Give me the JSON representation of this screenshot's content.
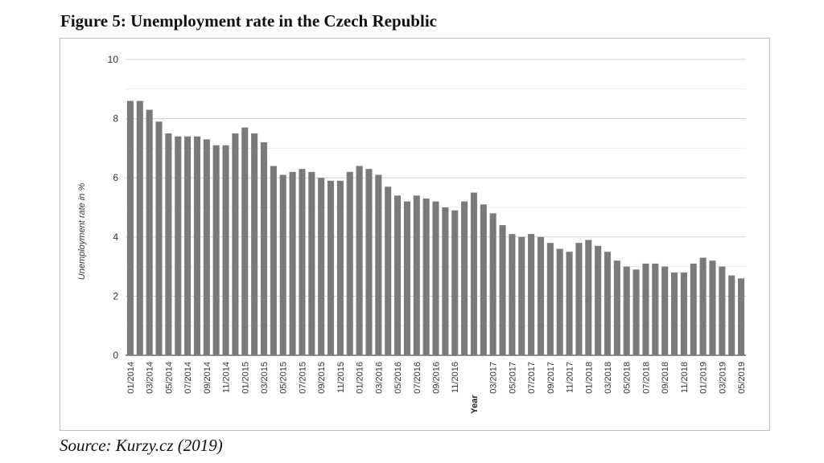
{
  "figure": {
    "title": "Figure 5: Unemployment rate in the Czech Republic",
    "source": "Source: Kurzy.cz (2019)"
  },
  "chart_data": {
    "type": "bar",
    "title": "",
    "xlabel": "Year",
    "ylabel": "Unemployment rate in %",
    "ylim": [
      0,
      10
    ],
    "y_ticks": [
      0,
      2,
      4,
      6,
      8,
      10
    ],
    "grid": true,
    "legend": "none",
    "bar_color": "#7a7a7a",
    "categories": [
      "01/2014",
      "02/2014",
      "03/2014",
      "04/2014",
      "05/2014",
      "06/2014",
      "07/2014",
      "08/2014",
      "09/2014",
      "10/2014",
      "11/2014",
      "12/2014",
      "01/2015",
      "02/2015",
      "03/2015",
      "04/2015",
      "05/2015",
      "06/2015",
      "07/2015",
      "08/2015",
      "09/2015",
      "10/2015",
      "11/2015",
      "12/2015",
      "01/2016",
      "02/2016",
      "03/2016",
      "04/2016",
      "05/2016",
      "06/2016",
      "07/2016",
      "08/2016",
      "09/2016",
      "10/2016",
      "11/2016",
      "12/2016",
      "01/2017",
      "02/2017",
      "03/2017",
      "04/2017",
      "05/2017",
      "06/2017",
      "07/2017",
      "08/2017",
      "09/2017",
      "10/2017",
      "11/2017",
      "12/2017",
      "01/2018",
      "02/2018",
      "03/2018",
      "04/2018",
      "05/2018",
      "06/2018",
      "07/2018",
      "08/2018",
      "09/2018",
      "10/2018",
      "11/2018",
      "12/2018",
      "01/2019",
      "02/2019",
      "03/2019",
      "04/2019",
      "05/2019"
    ],
    "x_tick_labels": [
      "01/2014",
      "03/2014",
      "05/2014",
      "07/2014",
      "09/2014",
      "11/2014",
      "01/2015",
      "03/2015",
      "05/2015",
      "07/2015",
      "09/2015",
      "11/2015",
      "01/2016",
      "03/2016",
      "05/2016",
      "07/2016",
      "09/2016",
      "11/2016",
      "03/2017",
      "05/2017",
      "07/2017",
      "09/2017",
      "11/2017",
      "01/2018",
      "03/2018",
      "05/2018",
      "07/2018",
      "09/2018",
      "11/2018",
      "01/2019",
      "03/2019",
      "05/2019"
    ],
    "values": [
      8.6,
      8.6,
      8.3,
      7.9,
      7.5,
      7.4,
      7.4,
      7.4,
      7.3,
      7.1,
      7.1,
      7.5,
      7.7,
      7.5,
      7.2,
      6.4,
      6.1,
      6.2,
      6.3,
      6.2,
      6.0,
      5.9,
      5.9,
      6.2,
      6.4,
      6.3,
      6.1,
      5.7,
      5.4,
      5.2,
      5.4,
      5.3,
      5.2,
      5.0,
      4.9,
      5.2,
      5.5,
      5.1,
      4.8,
      4.4,
      4.1,
      4.0,
      4.1,
      4.0,
      3.8,
      3.6,
      3.5,
      3.8,
      3.9,
      3.7,
      3.5,
      3.2,
      3.0,
      2.9,
      3.1,
      3.1,
      3.0,
      2.8,
      2.8,
      3.1,
      3.3,
      3.2,
      3.0,
      2.7,
      2.6
    ]
  }
}
